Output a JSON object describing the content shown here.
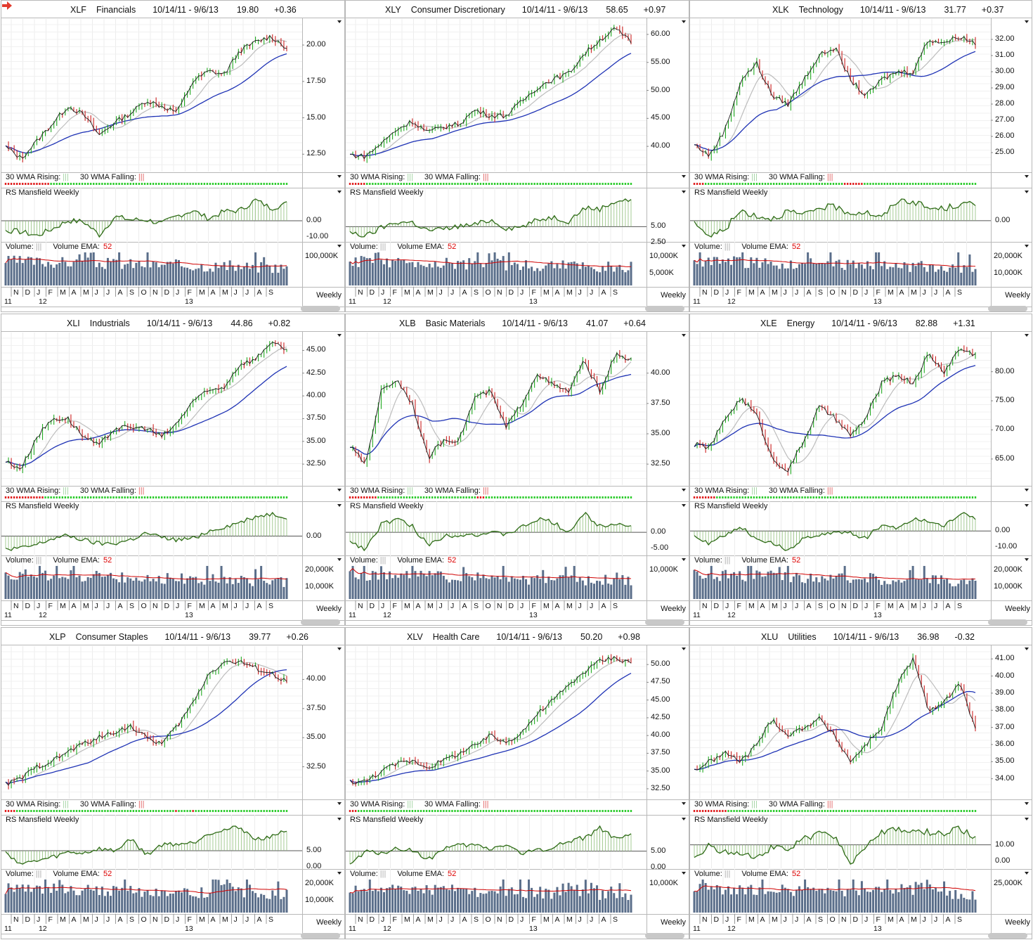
{
  "labels": {
    "wma_rising": "30 WMA Rising:",
    "wma_falling": "30 WMA Falling:",
    "bars": "|||",
    "rs": "RS Mansfield Weekly",
    "volume": "Volume:",
    "vol_ema": "Volume EMA:",
    "ema_len": "52",
    "weekly": "Weekly",
    "months": [
      "N",
      "D",
      "J",
      "F",
      "M",
      "A",
      "M",
      "J",
      "J",
      "A",
      "S",
      "O",
      "N",
      "D",
      "J",
      "F",
      "M",
      "A",
      "M",
      "J",
      "J",
      "A",
      "S"
    ],
    "years": [
      "11",
      "12",
      "13"
    ]
  },
  "colors": {
    "price_up": "#22aa22",
    "price_down": "#cc2222",
    "price_line": "#1a1a1a",
    "wma": "#1f33b5",
    "ma_fast": "#bdbdbd",
    "rs": "#2e6b16",
    "volume": "#5a6e8a",
    "vol_ema": "#d00000",
    "wma_rise": "#2ecc2e",
    "wma_fall": "#e02020"
  },
  "panels": [
    {
      "ticker": "XLF",
      "name": "Financials",
      "range": "10/14/11 - 9/6/13",
      "last": "19.80",
      "change": "+0.36",
      "flag_icon": "red-arrow-icon",
      "price_ticks": [
        "20.00",
        "17.50",
        "15.00",
        "12.50"
      ],
      "rs_ticks": [
        "0.00",
        "-10.00"
      ],
      "vol_ticks": [
        "100,000K"
      ],
      "red_weeks": 16
    },
    {
      "ticker": "XLY",
      "name": "Consumer Discretionary",
      "range": "10/14/11 - 9/6/13",
      "last": "58.65",
      "change": "+0.97",
      "price_ticks": [
        "60.00",
        "55.00",
        "50.00",
        "45.00",
        "40.00"
      ],
      "rs_ticks": [
        "5.00",
        "2.50"
      ],
      "vol_ticks": [
        "10,000K",
        "5,000K"
      ],
      "red_weeks": 6
    },
    {
      "ticker": "XLK",
      "name": "Technology",
      "range": "10/14/11 - 9/6/13",
      "last": "31.77",
      "change": "+0.37",
      "price_ticks": [
        "32.00",
        "31.00",
        "30.00",
        "29.00",
        "28.00",
        "27.00",
        "26.00",
        "25.00"
      ],
      "rs_ticks": [
        "0.00"
      ],
      "vol_ticks": [
        "20,000K",
        "10,000K"
      ],
      "red_weeks": 4
    },
    {
      "ticker": "XLI",
      "name": "Industrials",
      "range": "10/14/11 - 9/6/13",
      "last": "44.86",
      "change": "+0.82",
      "price_ticks": [
        "45.00",
        "42.50",
        "40.00",
        "37.50",
        "35.00",
        "32.50"
      ],
      "rs_ticks": [
        "0.00"
      ],
      "vol_ticks": [
        "20,000K",
        "10,000K"
      ],
      "red_weeks": 14
    },
    {
      "ticker": "XLB",
      "name": "Basic Materials",
      "range": "10/14/11 - 9/6/13",
      "last": "41.07",
      "change": "+0.64",
      "price_ticks": [
        "40.00",
        "37.50",
        "35.00",
        "32.50"
      ],
      "rs_ticks": [
        "0.00",
        "-5.00"
      ],
      "vol_ticks": [
        "10,000K"
      ],
      "red_weeks": 10
    },
    {
      "ticker": "XLE",
      "name": "Energy",
      "range": "10/14/11 - 9/6/13",
      "last": "82.88",
      "change": "+1.31",
      "price_ticks": [
        "80.00",
        "75.00",
        "70.00",
        "65.00"
      ],
      "rs_ticks": [
        "0.00",
        "-10.00"
      ],
      "vol_ticks": [
        "20,000K",
        "10,000K"
      ],
      "red_weeks": 8
    },
    {
      "ticker": "XLP",
      "name": "Consumer Staples",
      "range": "10/14/11 - 9/6/13",
      "last": "39.77",
      "change": "+0.26",
      "price_ticks": [
        "40.00",
        "37.50",
        "35.00",
        "32.50"
      ],
      "rs_ticks": [
        "5.00",
        "0.00"
      ],
      "vol_ticks": [
        "20,000K",
        "10,000K"
      ],
      "red_weeks": 4
    },
    {
      "ticker": "XLV",
      "name": "Health Care",
      "range": "10/14/11 - 9/6/13",
      "last": "50.20",
      "change": "+0.98",
      "price_ticks": [
        "50.00",
        "47.50",
        "45.00",
        "42.50",
        "40.00",
        "37.50",
        "35.00",
        "32.50"
      ],
      "rs_ticks": [
        "5.00",
        "0.00"
      ],
      "vol_ticks": [
        "10,000K"
      ],
      "red_weeks": 3
    },
    {
      "ticker": "XLU",
      "name": "Utilities",
      "range": "10/14/11 - 9/6/13",
      "last": "36.98",
      "change": "-0.32",
      "price_ticks": [
        "41.00",
        "40.00",
        "39.00",
        "38.00",
        "37.00",
        "36.00",
        "35.00",
        "34.00"
      ],
      "rs_ticks": [
        "10.00",
        "0.00"
      ],
      "vol_ticks": [
        "25,000K"
      ],
      "red_weeks": 12
    }
  ],
  "chart_data": [
    {
      "type": "line",
      "title": "XLF Financials",
      "x_label": "Weekly",
      "series": [
        {
          "name": "XLF",
          "values": [
            13.0,
            12.2,
            13.4,
            14.6,
            15.8,
            15.2,
            13.8,
            14.7,
            15.3,
            16.2,
            15.8,
            15.4,
            17.5,
            18.2,
            18.0,
            19.6,
            20.2,
            20.6,
            19.8
          ]
        }
      ],
      "ylim": [
        11.5,
        21.5
      ]
    },
    {
      "type": "line",
      "title": "XLY Consumer Discretionary",
      "x_label": "Weekly",
      "series": [
        {
          "name": "XLY",
          "values": [
            38.5,
            38.2,
            40.5,
            43.0,
            44.5,
            42.5,
            43.5,
            44.0,
            46.5,
            45.5,
            45.5,
            48.0,
            50.5,
            52.0,
            53.0,
            56.5,
            59.0,
            61.0,
            58.65
          ]
        }
      ],
      "ylim": [
        36,
        62
      ]
    },
    {
      "type": "line",
      "title": "XLK Technology",
      "x_label": "Weekly",
      "series": [
        {
          "name": "XLK",
          "values": [
            25.5,
            24.8,
            26.5,
            29.5,
            30.5,
            28.5,
            28.0,
            29.5,
            31.0,
            31.5,
            29.5,
            28.5,
            29.5,
            30.0,
            30.0,
            32.0,
            31.8,
            32.2,
            31.77
          ]
        }
      ],
      "ylim": [
        24,
        33
      ]
    },
    {
      "type": "line",
      "title": "XLI Industrials",
      "x_label": "Weekly",
      "series": [
        {
          "name": "XLI",
          "values": [
            32.8,
            32.0,
            35.5,
            37.5,
            37.5,
            35.5,
            34.5,
            36.5,
            36.5,
            36.5,
            35.5,
            37.0,
            39.5,
            40.5,
            41.0,
            43.5,
            44.0,
            46.0,
            44.86
          ]
        }
      ],
      "ylim": [
        30.5,
        46.5
      ]
    },
    {
      "type": "line",
      "title": "XLB Basic Materials",
      "x_label": "Weekly",
      "series": [
        {
          "name": "XLB",
          "values": [
            34.0,
            32.5,
            38.5,
            39.5,
            37.5,
            33.0,
            34.5,
            34.5,
            38.0,
            38.5,
            35.5,
            37.5,
            40.0,
            39.0,
            38.5,
            41.0,
            38.5,
            41.5,
            41.07
          ]
        }
      ],
      "ylim": [
        31,
        43
      ]
    },
    {
      "type": "line",
      "title": "XLE Energy",
      "x_label": "Weekly",
      "series": [
        {
          "name": "XLE",
          "values": [
            67.5,
            67.0,
            72.0,
            75.5,
            72.5,
            65.0,
            63.0,
            68.0,
            74.0,
            72.0,
            69.0,
            72.0,
            78.0,
            79.5,
            78.0,
            83.0,
            80.0,
            84.0,
            82.88
          ]
        }
      ],
      "ylim": [
        61,
        86
      ]
    },
    {
      "type": "line",
      "title": "XLP Consumer Staples",
      "x_label": "Weekly",
      "series": [
        {
          "name": "XLP",
          "values": [
            31.0,
            31.5,
            32.5,
            33.0,
            33.8,
            34.5,
            35.0,
            35.5,
            36.0,
            35.0,
            34.5,
            36.0,
            38.0,
            40.5,
            41.5,
            41.5,
            41.0,
            40.5,
            39.77
          ]
        }
      ],
      "ylim": [
        30,
        42.5
      ]
    },
    {
      "type": "line",
      "title": "XLV Health Care",
      "x_label": "Weekly",
      "series": [
        {
          "name": "XLV",
          "values": [
            33.5,
            33.5,
            35.0,
            36.0,
            36.5,
            35.5,
            36.5,
            37.5,
            38.5,
            40.0,
            39.0,
            40.5,
            43.0,
            45.0,
            47.0,
            49.0,
            50.5,
            51.0,
            50.2
          ]
        }
      ],
      "ylim": [
        31.5,
        52
      ]
    },
    {
      "type": "line",
      "title": "XLU Utilities",
      "x_label": "Weekly",
      "series": [
        {
          "name": "XLU",
          "values": [
            34.5,
            35.0,
            35.5,
            35.0,
            36.0,
            37.5,
            36.5,
            37.0,
            37.5,
            36.5,
            35.0,
            36.0,
            37.0,
            39.5,
            41.0,
            38.0,
            38.5,
            39.5,
            36.98
          ]
        }
      ],
      "ylim": [
        33,
        41.5
      ]
    }
  ]
}
